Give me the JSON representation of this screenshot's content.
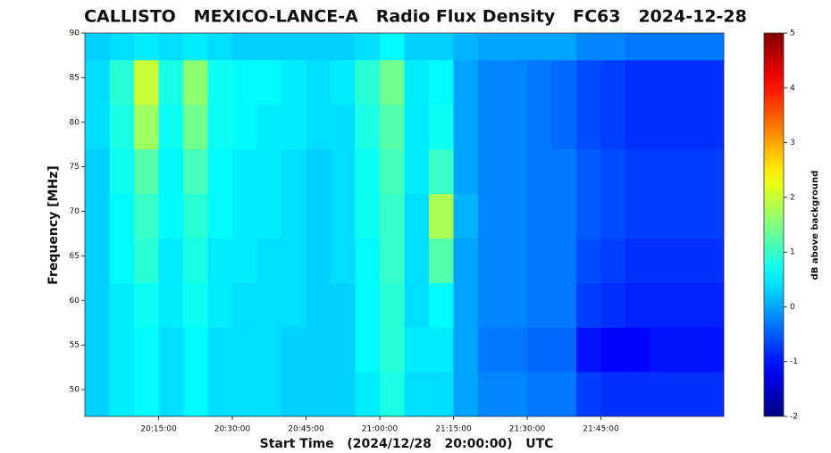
{
  "chart_data": {
    "type": "heatmap",
    "title": "CALLISTO   MEXICO-LANCE-A   Radio Flux Density   FC63   2024-12-28",
    "xlabel": "Start Time   (2024/12/28   20:00:00)   UTC",
    "ylabel": "Frequency [MHz]",
    "colorbar_label": "dB above background",
    "colormap": "jet",
    "x_edges": [
      0,
      5,
      10,
      15,
      20,
      25,
      30,
      35,
      40,
      45,
      50,
      55,
      60,
      65,
      70,
      75,
      80,
      85,
      90,
      95,
      100,
      105,
      110,
      115,
      120,
      125,
      130
    ],
    "y_edges": [
      47,
      52,
      57,
      62,
      67,
      72,
      77,
      82,
      87,
      90
    ],
    "xlim": [
      0,
      130
    ],
    "ylim": [
      47,
      90
    ],
    "zlim": [
      -2,
      5
    ],
    "xticks": [
      {
        "value": 15,
        "label": "20:15:00"
      },
      {
        "value": 30,
        "label": "20:30:00"
      },
      {
        "value": 45,
        "label": "20:45:00"
      },
      {
        "value": 60,
        "label": "21:00:00"
      },
      {
        "value": 75,
        "label": "21:15:00"
      },
      {
        "value": 90,
        "label": "21:30:00"
      },
      {
        "value": 105,
        "label": "21:45:00"
      }
    ],
    "yticks": [
      50,
      55,
      60,
      65,
      70,
      75,
      80,
      85,
      90
    ],
    "zticks": [
      -2,
      -1,
      0,
      1,
      2,
      3,
      4,
      5
    ],
    "values": [
      [
        0.3,
        0.5,
        0.6,
        0.4,
        0.6,
        0.4,
        0.4,
        0.4,
        0.3,
        0.3,
        0.3,
        0.5,
        0.8,
        0.4,
        0.4,
        0.0,
        -0.2,
        -0.2,
        -0.3,
        -0.3,
        -0.7,
        -0.8,
        -0.8,
        -0.8,
        -0.8,
        -0.8
      ],
      [
        0.3,
        0.5,
        0.6,
        0.4,
        0.6,
        0.4,
        0.4,
        0.4,
        0.3,
        0.3,
        0.3,
        0.6,
        0.9,
        0.5,
        0.5,
        0.0,
        -0.3,
        -0.3,
        -0.4,
        -0.4,
        -1.0,
        -1.1,
        -1.1,
        -1.0,
        -1.0,
        -1.0
      ],
      [
        0.3,
        0.5,
        0.7,
        0.5,
        0.7,
        0.5,
        0.4,
        0.4,
        0.4,
        0.3,
        0.3,
        0.6,
        0.9,
        0.4,
        0.6,
        0.0,
        -0.2,
        -0.2,
        -0.3,
        -0.3,
        -0.7,
        -0.8,
        -0.9,
        -0.9,
        -0.9,
        -0.9
      ],
      [
        0.3,
        0.6,
        0.9,
        0.5,
        0.8,
        0.5,
        0.5,
        0.4,
        0.4,
        0.3,
        0.4,
        0.6,
        1.0,
        0.4,
        1.2,
        0.0,
        -0.2,
        -0.2,
        -0.3,
        -0.3,
        -0.6,
        -0.7,
        -0.8,
        -0.8,
        -0.8,
        -0.8
      ],
      [
        0.3,
        0.6,
        1.0,
        0.6,
        0.9,
        0.6,
        0.5,
        0.5,
        0.4,
        0.3,
        0.4,
        0.7,
        1.0,
        0.4,
        1.8,
        0.1,
        -0.2,
        -0.2,
        -0.3,
        -0.3,
        -0.5,
        -0.6,
        -0.7,
        -0.7,
        -0.7,
        -0.7
      ],
      [
        0.3,
        0.7,
        1.2,
        0.6,
        1.1,
        0.6,
        0.5,
        0.5,
        0.4,
        0.3,
        0.4,
        0.7,
        1.1,
        0.5,
        1.0,
        0.0,
        -0.2,
        -0.2,
        -0.3,
        -0.3,
        -0.5,
        -0.6,
        -0.7,
        -0.7,
        -0.7,
        -0.7
      ],
      [
        0.4,
        0.8,
        1.7,
        0.7,
        1.4,
        0.7,
        0.6,
        0.5,
        0.5,
        0.4,
        0.4,
        0.8,
        1.2,
        0.5,
        0.7,
        0.0,
        -0.2,
        -0.2,
        -0.3,
        -0.4,
        -0.6,
        -0.7,
        -0.8,
        -0.8,
        -0.8,
        -0.8
      ],
      [
        0.4,
        0.9,
        2.0,
        0.8,
        1.6,
        0.7,
        0.6,
        0.6,
        0.5,
        0.4,
        0.5,
        0.9,
        1.4,
        0.5,
        0.6,
        0.0,
        -0.2,
        -0.2,
        -0.3,
        -0.4,
        -0.6,
        -0.7,
        -0.8,
        -0.8,
        -0.8,
        -0.8
      ],
      [
        0.3,
        0.4,
        0.5,
        0.4,
        0.5,
        0.4,
        0.3,
        0.3,
        0.3,
        0.3,
        0.3,
        0.4,
        0.6,
        0.3,
        0.3,
        0.1,
        0.0,
        0.0,
        0.0,
        0.0,
        -0.2,
        -0.2,
        -0.3,
        -0.3,
        -0.3,
        -0.3
      ]
    ]
  }
}
